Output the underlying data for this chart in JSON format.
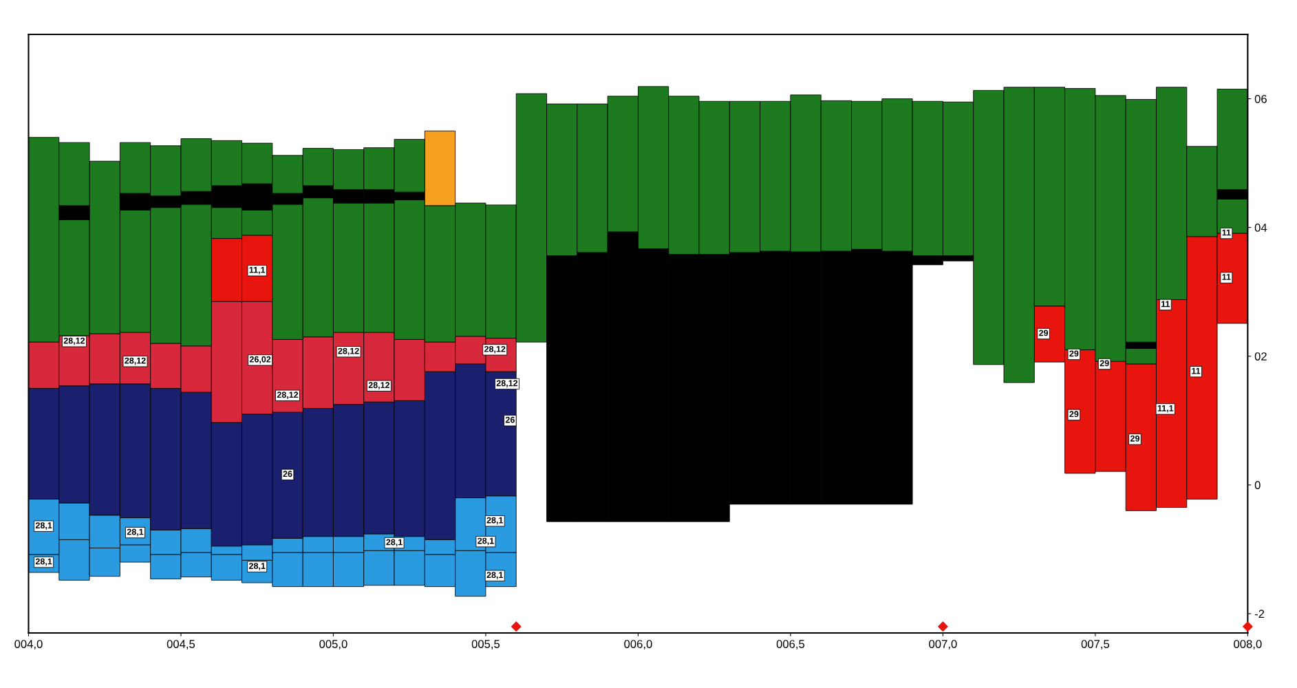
{
  "chart_data": {
    "type": "bar",
    "xlim": [
      4.0,
      8.0
    ],
    "xticks": [
      {
        "value": 4.0,
        "label": "004,0"
      },
      {
        "value": 4.5,
        "label": "004,5"
      },
      {
        "value": 5.0,
        "label": "005,0"
      },
      {
        "value": 5.5,
        "label": "005,5"
      },
      {
        "value": 6.0,
        "label": "006,0"
      },
      {
        "value": 6.5,
        "label": "006,5"
      },
      {
        "value": 7.0,
        "label": "007,0"
      },
      {
        "value": 7.5,
        "label": "007,5"
      },
      {
        "value": 8.0,
        "label": "008,0"
      }
    ],
    "ylim": [
      -2.3,
      7.0
    ],
    "yticks": [
      {
        "value": -2,
        "label": "-2"
      },
      0,
      {
        "value": 2,
        "label": "02"
      },
      {
        "value": 4,
        "label": "04"
      },
      {
        "value": 6,
        "label": "06"
      }
    ],
    "grid": false,
    "series": [
      {
        "color": "#2a9be0",
        "x": [
          4.05,
          4.15,
          4.25,
          4.35,
          4.45,
          4.55,
          4.65,
          4.75,
          4.85,
          4.95,
          5.05,
          5.15,
          5.25,
          5.35,
          5.45,
          5.55
        ],
        "base": [
          -1.36,
          -1.48,
          -1.42,
          -1.2,
          -1.46,
          -1.43,
          -1.48,
          -1.52,
          -1.58,
          -1.58,
          -1.58,
          -1.56,
          -1.56,
          -1.58,
          -1.73,
          -1.58
        ],
        "values": [
          0.28,
          0.63,
          0.44,
          0.27,
          0.38,
          0.38,
          0.4,
          0.35,
          0.53,
          0.53,
          0.53,
          0.54,
          0.54,
          0.5,
          0.71,
          0.53
        ]
      },
      {
        "color": "#2a9be0",
        "x": [
          4.05,
          4.15,
          4.25,
          4.35,
          4.45,
          4.55,
          4.65,
          4.75,
          4.85,
          4.95,
          5.05,
          5.15,
          5.25,
          5.35,
          5.45,
          5.55
        ],
        "base": [
          -1.08,
          -0.85,
          -0.98,
          -0.93,
          -1.08,
          -1.05,
          -1.08,
          -1.17,
          -1.05,
          -1.05,
          -1.05,
          -1.02,
          -1.02,
          -1.08,
          -1.02,
          -1.05
        ],
        "values": [
          0.86,
          0.57,
          0.51,
          0.42,
          0.38,
          0.37,
          0.13,
          0.24,
          0.22,
          0.25,
          0.25,
          0.26,
          0.22,
          0.23,
          0.82,
          0.88
        ]
      },
      {
        "color": "#1a1f6e",
        "x": [
          4.05,
          4.15,
          4.25,
          4.35,
          4.45,
          4.55,
          4.65,
          4.75,
          4.85,
          4.95,
          5.05,
          5.15,
          5.25,
          5.35,
          5.45,
          5.55
        ],
        "base": [
          -0.22,
          -0.28,
          -0.47,
          -0.51,
          -0.7,
          -0.68,
          -0.95,
          -0.93,
          -0.83,
          -0.8,
          -0.8,
          -0.76,
          -0.8,
          -0.85,
          -0.2,
          -0.17
        ],
        "values": [
          1.72,
          1.82,
          2.04,
          2.08,
          2.2,
          2.12,
          1.92,
          2.03,
          1.96,
          1.99,
          2.05,
          2.05,
          2.11,
          2.61,
          2.08,
          1.93
        ]
      },
      {
        "color": "#d8283c",
        "x": [
          4.05,
          4.15,
          4.25,
          4.35,
          4.45,
          4.55,
          4.65,
          4.75,
          4.85,
          4.95,
          5.05,
          5.15,
          5.25,
          5.35,
          5.45,
          5.55
        ],
        "base": [
          1.5,
          1.54,
          1.57,
          1.57,
          1.5,
          1.44,
          0.97,
          1.1,
          1.13,
          1.19,
          1.25,
          1.29,
          1.31,
          1.76,
          1.88,
          1.76
        ],
        "values": [
          0.72,
          0.78,
          0.78,
          0.8,
          0.7,
          0.72,
          1.88,
          1.75,
          1.13,
          1.11,
          1.12,
          1.08,
          0.95,
          0.46,
          0.43,
          0.52
        ]
      },
      {
        "color": "#e8150f",
        "x": [
          4.65,
          4.75,
          7.35,
          7.45,
          7.55,
          7.65,
          7.75,
          7.85,
          7.95
        ],
        "base": [
          2.85,
          2.85,
          1.91,
          0.18,
          0.21,
          -0.4,
          -0.35,
          -0.22,
          2.51
        ],
        "values": [
          0.98,
          1.03,
          0.87,
          1.92,
          1.71,
          2.28,
          3.23,
          4.08,
          1.4
        ]
      },
      {
        "color": "#1e7a1e",
        "x": [
          4.05,
          4.15,
          4.25,
          4.35,
          4.45,
          4.55,
          4.65,
          4.75,
          4.85,
          4.95,
          5.05,
          5.15,
          5.25,
          5.35,
          5.45,
          5.55,
          5.65,
          5.75,
          5.85,
          5.95,
          6.05,
          6.15,
          6.25,
          6.35,
          6.45,
          6.55,
          6.65,
          6.75,
          6.85,
          6.95,
          7.05,
          7.15,
          7.25,
          7.35,
          7.45,
          7.55,
          7.65,
          7.75,
          7.85,
          7.95
        ],
        "base": [
          2.22,
          2.32,
          2.35,
          2.37,
          2.2,
          2.16,
          3.83,
          3.88,
          2.26,
          2.3,
          2.37,
          2.37,
          2.26,
          2.22,
          2.31,
          2.28,
          2.22,
          3.56,
          3.61,
          3.93,
          3.67,
          3.58,
          3.58,
          3.61,
          3.63,
          3.62,
          3.63,
          3.66,
          3.63,
          3.56,
          3.56,
          1.87,
          1.59,
          2.78,
          2.1,
          1.92,
          1.88,
          2.88,
          3.86,
          3.91
        ],
        "values": [
          3.18,
          1.8,
          2.68,
          1.9,
          2.11,
          2.2,
          0.48,
          0.39,
          2.1,
          2.16,
          2.01,
          2.01,
          2.17,
          2.12,
          2.07,
          2.07,
          3.86,
          2.36,
          2.31,
          2.11,
          2.52,
          2.46,
          2.38,
          2.35,
          2.33,
          2.44,
          2.34,
          2.3,
          2.37,
          2.4,
          2.39,
          4.26,
          4.59,
          3.4,
          4.06,
          4.13,
          0.24,
          3.3,
          1.4,
          0.53
        ]
      },
      {
        "color": "#000000",
        "x": [
          4.15,
          4.35,
          4.45,
          4.55,
          4.65,
          4.75,
          4.85,
          4.95,
          5.05,
          5.15,
          5.25,
          5.75,
          5.85,
          5.95,
          6.05,
          6.15,
          6.25,
          6.35,
          6.45,
          6.55,
          6.65,
          6.75,
          6.85,
          6.95,
          7.05,
          7.65,
          7.95
        ],
        "base": [
          4.12,
          4.27,
          4.31,
          4.36,
          4.31,
          4.27,
          4.36,
          4.46,
          4.38,
          4.38,
          4.43,
          -0.57,
          -0.57,
          -0.57,
          -0.57,
          -0.57,
          -0.57,
          -0.3,
          -0.3,
          -0.3,
          -0.3,
          -0.3,
          -0.3,
          3.42,
          3.48,
          2.12,
          4.44
        ],
        "values": [
          0.22,
          0.26,
          0.18,
          0.2,
          0.34,
          0.41,
          0.17,
          0.19,
          0.21,
          0.21,
          0.12,
          4.13,
          4.18,
          4.5,
          4.24,
          4.15,
          4.15,
          3.91,
          3.93,
          3.92,
          3.93,
          3.96,
          3.93,
          0.14,
          0.08,
          0.1,
          0.15
        ]
      },
      {
        "color": "#f5a01e",
        "x": [
          5.35
        ],
        "base": [
          4.34
        ],
        "values": [
          1.16
        ]
      },
      {
        "color": "#1e7a1e",
        "x": [
          4.15,
          4.35,
          4.45,
          4.55,
          4.65,
          4.75,
          4.85,
          4.95,
          5.05,
          5.15,
          5.25,
          7.65,
          7.95
        ],
        "base": [
          4.34,
          4.53,
          4.49,
          4.56,
          4.65,
          4.68,
          4.53,
          4.65,
          4.59,
          4.59,
          4.55,
          2.22,
          4.59
        ],
        "values": [
          0.98,
          0.79,
          0.78,
          0.82,
          0.7,
          0.63,
          0.59,
          0.58,
          0.62,
          0.65,
          0.82,
          3.77,
          1.56
        ]
      },
      {
        "type": "scatter",
        "color": "#e8150f",
        "marker": "diamond",
        "x": [
          5.6,
          7.0,
          8.0
        ],
        "values": [
          -2.2,
          -2.2,
          -2.2
        ]
      }
    ],
    "annotations": [
      {
        "text": "28,12",
        "x": 4.15,
        "y": 2.23
      },
      {
        "text": "28,12",
        "x": 4.35,
        "y": 1.92
      },
      {
        "text": "11,1",
        "x": 4.75,
        "y": 3.33
      },
      {
        "text": "26,02",
        "x": 4.76,
        "y": 1.94
      },
      {
        "text": "28,12",
        "x": 5.05,
        "y": 2.07
      },
      {
        "text": "28,12",
        "x": 4.85,
        "y": 1.39
      },
      {
        "text": "28,12",
        "x": 5.15,
        "y": 1.54
      },
      {
        "text": "28,12",
        "x": 5.53,
        "y": 2.1
      },
      {
        "text": "28,12",
        "x": 5.57,
        "y": 1.57
      },
      {
        "text": "26",
        "x": 5.58,
        "y": 1.0
      },
      {
        "text": "26",
        "x": 4.85,
        "y": 0.16
      },
      {
        "text": "28,1",
        "x": 4.05,
        "y": -0.64
      },
      {
        "text": "28,1",
        "x": 4.35,
        "y": -0.74
      },
      {
        "text": "28,1",
        "x": 4.05,
        "y": -1.2
      },
      {
        "text": "28,1",
        "x": 5.2,
        "y": -0.9
      },
      {
        "text": "28,1",
        "x": 4.75,
        "y": -1.27
      },
      {
        "text": "28,1",
        "x": 5.53,
        "y": -0.56
      },
      {
        "text": "28,1",
        "x": 5.5,
        "y": -0.88
      },
      {
        "text": "28,1",
        "x": 5.53,
        "y": -1.41
      },
      {
        "text": "29",
        "x": 7.33,
        "y": 2.35
      },
      {
        "text": "29",
        "x": 7.43,
        "y": 2.03
      },
      {
        "text": "29",
        "x": 7.53,
        "y": 1.88
      },
      {
        "text": "29",
        "x": 7.43,
        "y": 1.09
      },
      {
        "text": "29",
        "x": 7.63,
        "y": 0.71
      },
      {
        "text": "11",
        "x": 7.73,
        "y": 2.8
      },
      {
        "text": "11,1",
        "x": 7.73,
        "y": 1.18
      },
      {
        "text": "11",
        "x": 7.83,
        "y": 1.76
      },
      {
        "text": "11",
        "x": 7.93,
        "y": 3.91
      },
      {
        "text": "11",
        "x": 7.93,
        "y": 3.22
      }
    ]
  }
}
